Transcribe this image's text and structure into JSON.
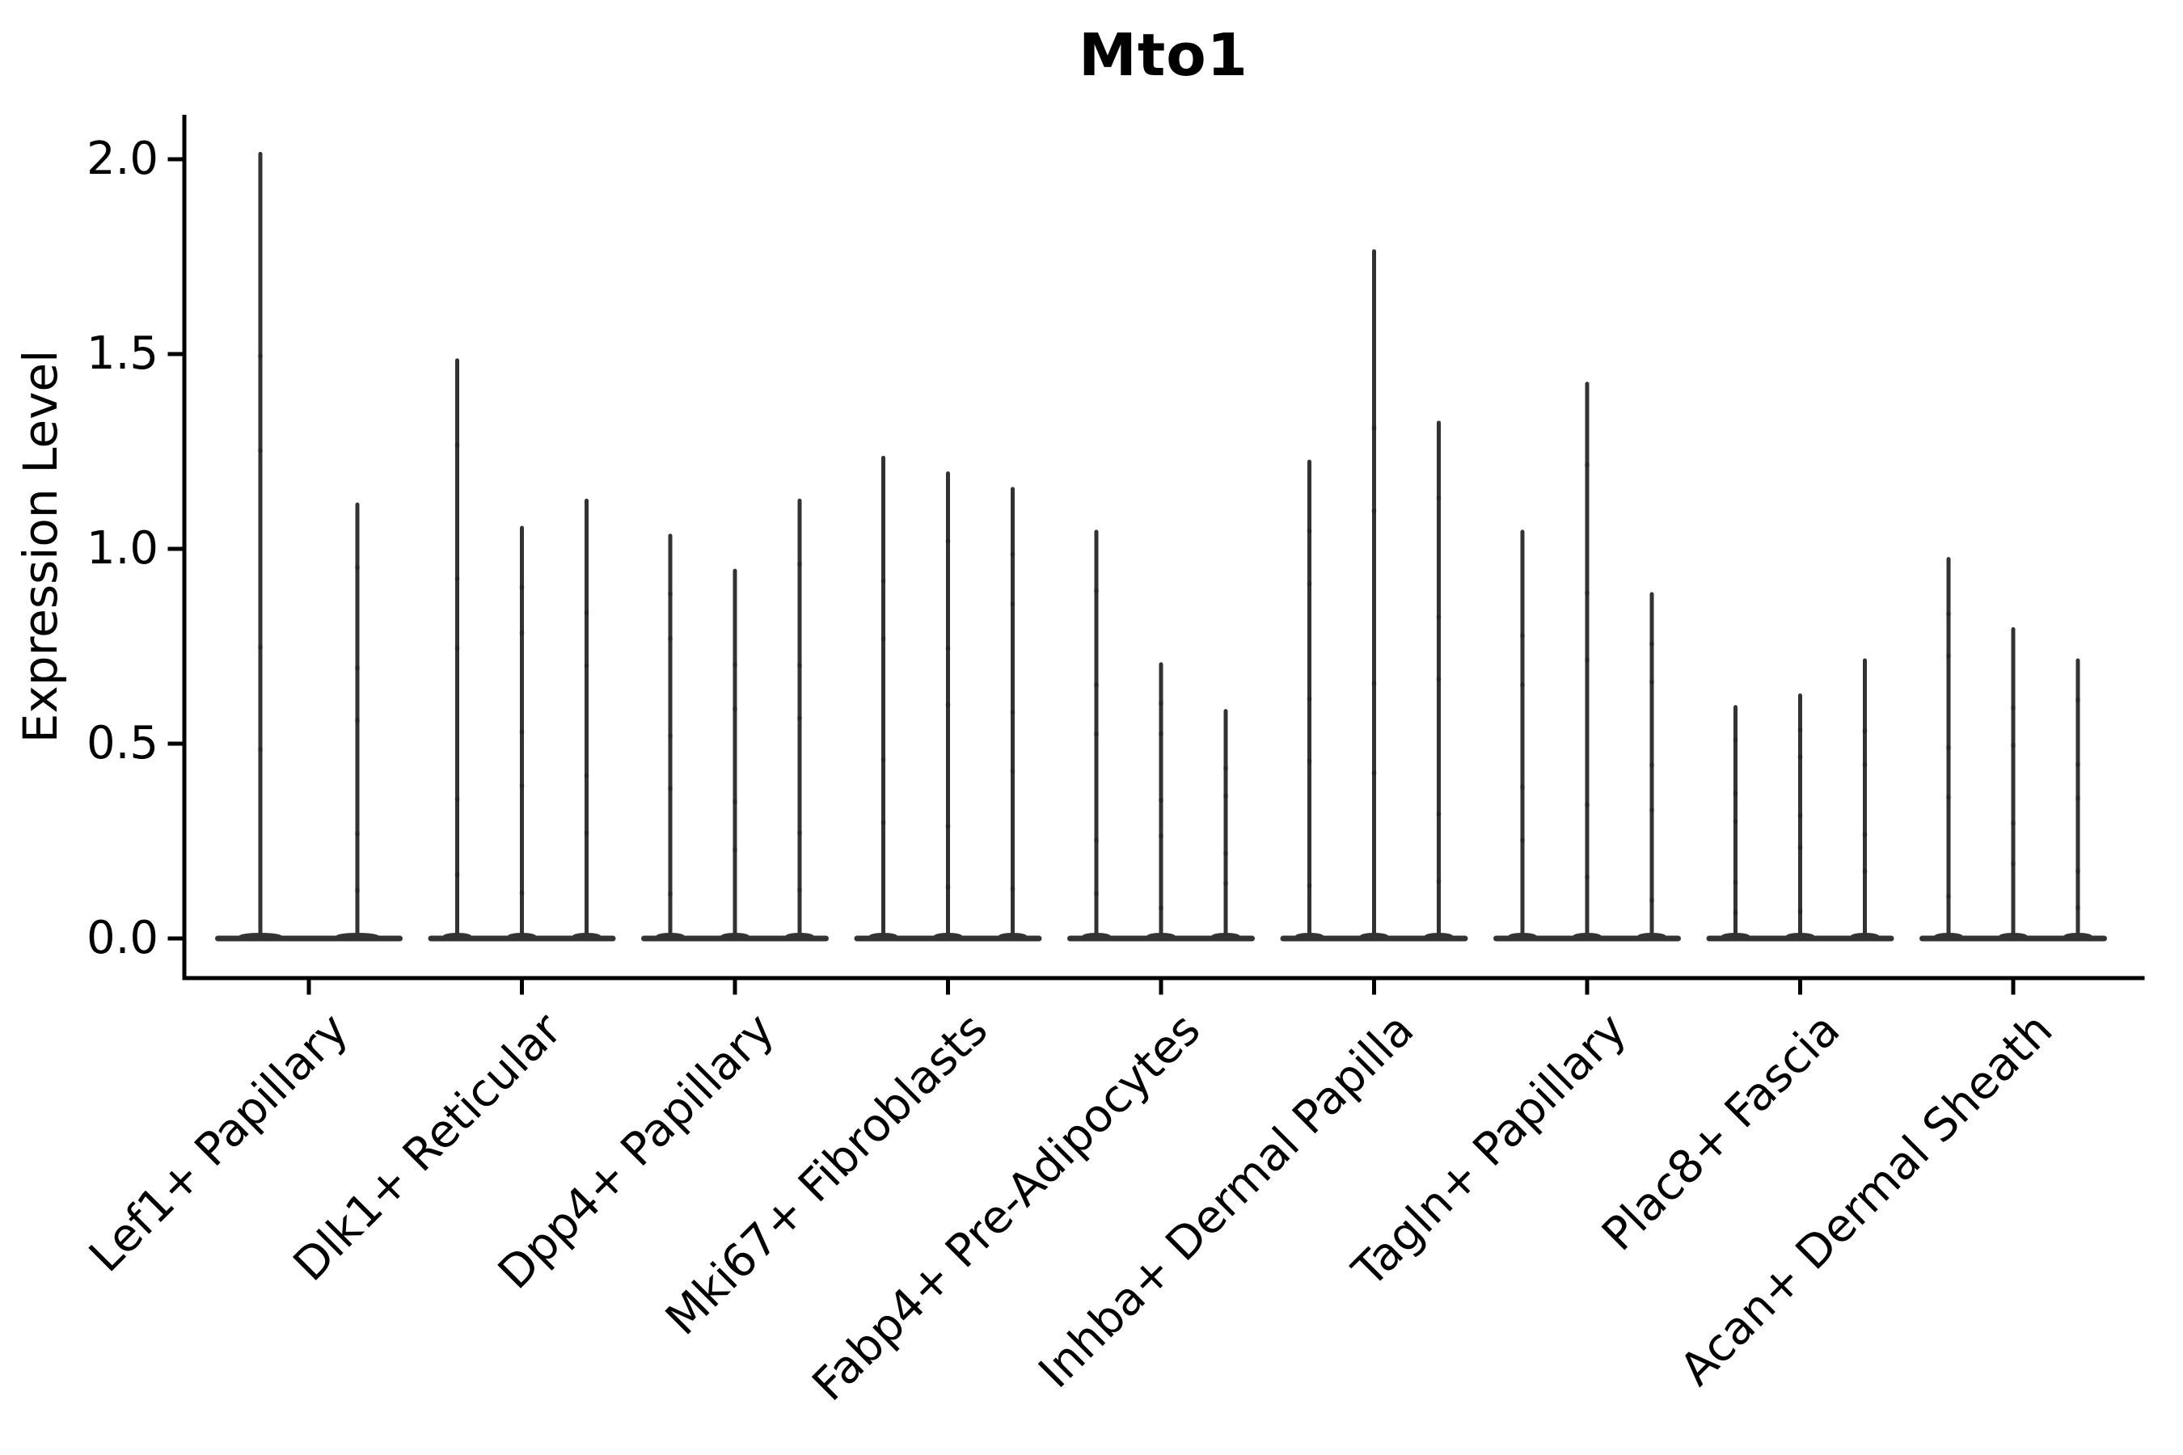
{
  "chart_data": {
    "type": "violin",
    "title": "Mto1",
    "xlabel": "",
    "ylabel": "Expression Level",
    "categories": [
      "Lef1+ Papillary",
      "Dlk1+ Reticular",
      "Dpp4+ Papillary",
      "Mki67+ Fibroblasts",
      "Fabp4+ Pre-Adipocytes",
      "Inhba+ Dermal Papilla",
      "Tagln+ Papillary",
      "Plac8+ Fascia",
      "Acan+ Dermal Sheath"
    ],
    "violin_max_expression": [
      [
        2.02,
        1.12
      ],
      [
        1.49,
        1.06,
        1.13
      ],
      [
        1.04,
        0.95,
        1.13
      ],
      [
        1.24,
        1.2,
        1.16
      ],
      [
        1.05,
        0.71,
        0.59
      ],
      [
        1.23,
        1.77,
        1.33
      ],
      [
        1.05,
        1.43,
        0.89
      ],
      [
        0.6,
        0.63,
        0.72
      ],
      [
        0.98,
        0.8,
        0.72
      ]
    ],
    "distribution_note": "Each violin's density mass sits at 0 (wide flat base on the zero line) with an extremely thin tail spiking up to its max value; faint jitter dots lie along the spikes",
    "y_ticks": [
      0.0,
      0.5,
      1.0,
      1.5,
      2.0
    ],
    "y_tick_labels": [
      "0.0",
      "0.5",
      "1.0",
      "1.5",
      "2.0"
    ],
    "ylim": [
      -0.1,
      2.12
    ],
    "x_tick_rotation_deg": 45,
    "grid": false,
    "legend_position": "none",
    "colors": {
      "violin": "#333333",
      "axis": "#000000",
      "text": "#000000",
      "background": "#ffffff"
    }
  }
}
